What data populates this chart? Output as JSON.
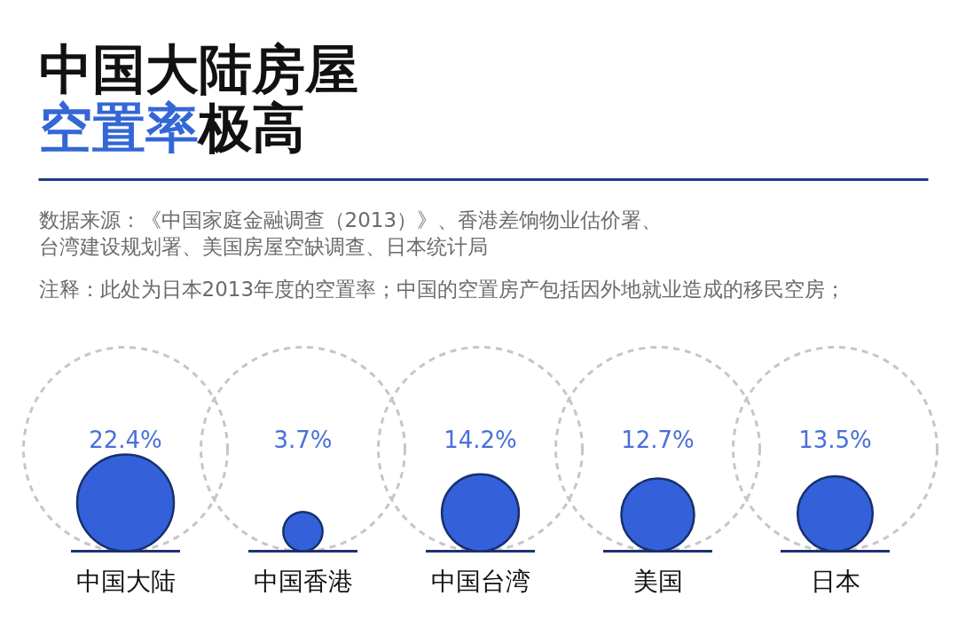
{
  "chart_data": {
    "type": "other",
    "title": "中国大陆房屋空置率极高",
    "annotations": [
      "数据来源：《中国家庭金融调查（2013）》、香港差饷物业估价署、台湾建设规划署、美国房屋空缺调查、日本统计局",
      "注释：此处为日本2013年度的空置率；中国的空置房产包括因外地就业造成的移民空房；"
    ],
    "categories": [
      "中国大陆",
      "中国香港",
      "中国台湾",
      "美国",
      "日本"
    ],
    "values": [
      22.4,
      3.7,
      14.2,
      12.7,
      13.5
    ],
    "value_labels": [
      "22.4%",
      "3.7%",
      "14.2%",
      "12.7%",
      "13.5%"
    ],
    "color": "#3461d9"
  }
}
